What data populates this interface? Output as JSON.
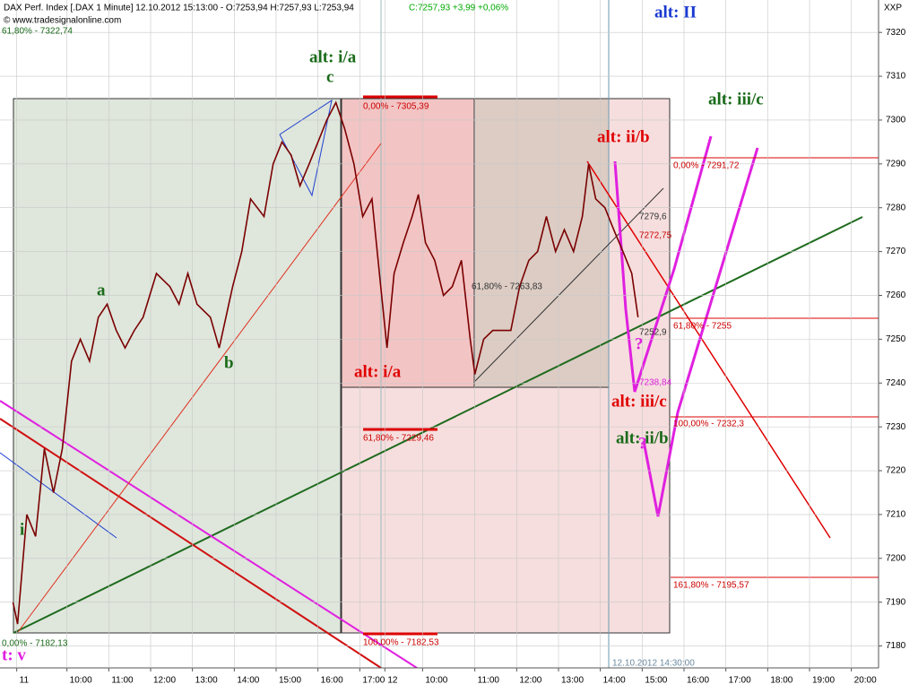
{
  "chart_data": {
    "type": "line",
    "title": "DAX Perf. Index [.DAX  1 Minute] 12.10.2012 15:13:00 - O:7253,94 H:7257,93 L:7253,94",
    "subtitle": "C:7257,93 +3,99 +0,06%",
    "source": "© www.tradesignalonline.com",
    "axis_code": "XXP",
    "cursor_label": "12.10.2012 14:30:00",
    "series": [
      {
        "name": "DAX",
        "color": "#7a0000",
        "x": [
          8.71,
          8.82,
          9.04,
          9.25,
          9.46,
          9.68,
          9.89,
          10.11,
          10.32,
          10.54,
          10.75,
          10.96,
          11.18,
          11.39,
          11.61,
          11.82,
          12.14,
          12.46,
          12.68,
          12.89,
          13.11,
          13.43,
          13.64,
          13.96,
          14.18,
          14.39,
          14.71,
          14.93,
          15.14,
          15.36,
          15.57,
          15.79,
          16.0,
          16.21,
          16.43,
          16.64,
          16.86,
          17.07,
          17.29,
          17.5,
          17.65,
          17.82,
          18.04,
          18.25,
          18.4,
          18.57,
          18.79,
          19.0,
          19.21,
          19.43,
          19.64,
          19.75,
          19.96,
          20.18,
          20.39,
          20.61,
          20.82,
          21.04,
          21.25,
          21.46,
          21.68,
          21.89,
          22.11,
          22.32,
          22.47,
          22.64,
          22.86,
          23.07,
          23.29,
          23.5,
          23.65
        ],
        "values": [
          7190,
          7185,
          7210,
          7205,
          7225,
          7215,
          7225,
          7245,
          7250,
          7245,
          7255,
          7258,
          7252,
          7248,
          7252,
          7255,
          7265,
          7262,
          7258,
          7265,
          7258,
          7255,
          7248,
          7262,
          7270,
          7282,
          7278,
          7290,
          7295,
          7292,
          7285,
          7290,
          7295,
          7300,
          7304,
          7298,
          7290,
          7278,
          7282,
          7262,
          7248,
          7265,
          7272,
          7278,
          7283,
          7272,
          7268,
          7260,
          7262,
          7268,
          7250,
          7242,
          7250,
          7252,
          7252,
          7252,
          7262,
          7268,
          7270,
          7278,
          7270,
          7275,
          7270,
          7278,
          7290,
          7282,
          7280,
          7275,
          7270,
          7265,
          7255
        ]
      }
    ],
    "xlim": [
      8.4,
      29.4
    ],
    "xticks": [
      {
        "value": 8.8,
        "label": "11"
      },
      {
        "value": 10,
        "label": "10:00"
      },
      {
        "value": 11,
        "label": "11:00"
      },
      {
        "value": 12,
        "label": "12:00"
      },
      {
        "value": 13,
        "label": "13:00"
      },
      {
        "value": 14,
        "label": "14:00"
      },
      {
        "value": 15,
        "label": "15:00"
      },
      {
        "value": 16,
        "label": "16:00"
      },
      {
        "value": 17,
        "label": "17:00"
      },
      {
        "value": 17.6,
        "label": "12"
      },
      {
        "value": 18.5,
        "label": "10:00"
      },
      {
        "value": 19.75,
        "label": "11:00"
      },
      {
        "value": 20.75,
        "label": "12:00"
      },
      {
        "value": 21.75,
        "label": "13:00"
      },
      {
        "value": 22.75,
        "label": "14:00"
      },
      {
        "value": 23.75,
        "label": "15:00"
      },
      {
        "value": 24.75,
        "label": "16:00"
      },
      {
        "value": 25.75,
        "label": "17:00"
      },
      {
        "value": 26.75,
        "label": "18:00"
      },
      {
        "value": 27.75,
        "label": "19:00"
      },
      {
        "value": 28.75,
        "label": "20:00"
      }
    ],
    "ylim": [
      7175,
      7327.4
    ],
    "yticks": [
      7180,
      7190,
      7200,
      7210,
      7220,
      7230,
      7240,
      7250,
      7260,
      7270,
      7280,
      7290,
      7300,
      7310,
      7320
    ],
    "grid": true,
    "annotations": [
      "alt: II",
      "alt: i/a",
      "c",
      "alt: iii/c",
      "alt: ii/b",
      "a",
      "b",
      "i",
      "t: v",
      "alt: i/a",
      "alt: iii/c",
      "alt: ii/b",
      "?",
      "?"
    ],
    "levels": [
      "61,80% - 7322,74",
      "0,00% - 7182,13",
      "0,00% - 7305,39",
      "61,80% - 7229,46",
      "100,00% - 7182,53",
      "0,00% - 7291,72",
      "61,80% - 7255",
      "100,00% - 7232,3",
      "161,80% - 7195,57",
      "61,80% - 7263,83",
      "7279,6",
      "7272,75",
      "7252,9",
      "7238,84"
    ]
  }
}
